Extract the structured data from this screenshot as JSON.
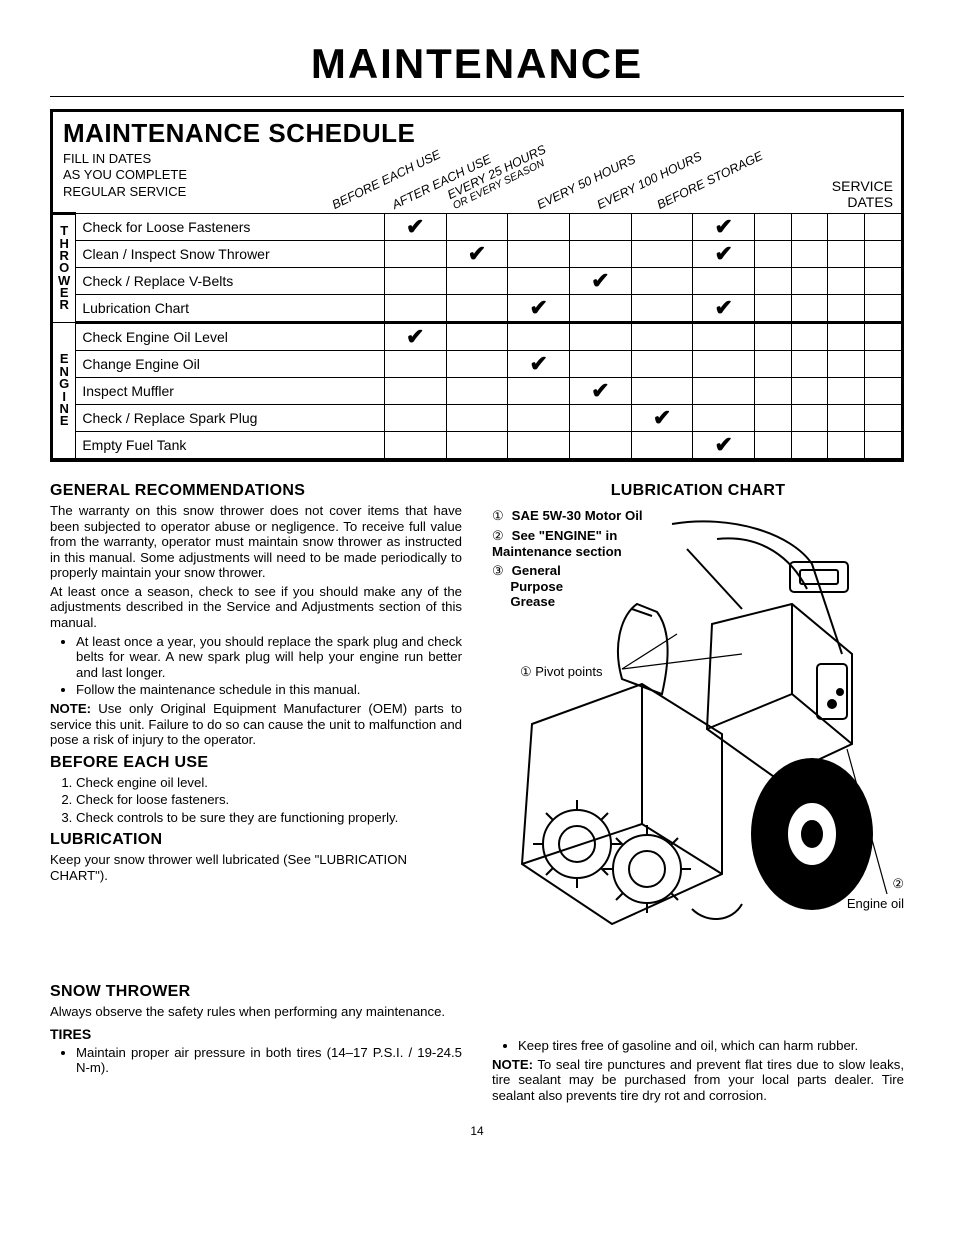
{
  "page_title": "MAINTENANCE",
  "page_number": "14",
  "schedule": {
    "title": "MAINTENANCE SCHEDULE",
    "subtitle_lines": [
      "FILL IN DATES",
      "AS YOU COMPLETE",
      "REGULAR SERVICE"
    ],
    "diag_cols": [
      "BEFORE EACH USE",
      "AFTER EACH USE",
      "EVERY 25 HOURS\nOR EVERY SEASON",
      "EVERY 50 HOURS",
      "EVERY 100 HOURS",
      "BEFORE STORAGE"
    ],
    "service_dates_label": "SERVICE\nDATES",
    "categories": [
      {
        "label": "THROWER",
        "rows": [
          {
            "task": "Check for Loose Fasteners",
            "marks": [
              true,
              false,
              false,
              false,
              false,
              true
            ]
          },
          {
            "task": "Clean / Inspect Snow Thrower",
            "marks": [
              false,
              true,
              false,
              false,
              false,
              true
            ]
          },
          {
            "task": "Check / Replace V-Belts",
            "marks": [
              false,
              false,
              false,
              true,
              false,
              false
            ]
          },
          {
            "task": "Lubrication Chart",
            "marks": [
              false,
              false,
              true,
              false,
              false,
              true
            ]
          }
        ]
      },
      {
        "label": "ENGINE",
        "rows": [
          {
            "task": "Check Engine Oil Level",
            "marks": [
              true,
              false,
              false,
              false,
              false,
              false
            ]
          },
          {
            "task": "Change Engine Oil",
            "marks": [
              false,
              false,
              true,
              false,
              false,
              false
            ]
          },
          {
            "task": "Inspect Muffler",
            "marks": [
              false,
              false,
              false,
              true,
              false,
              false
            ]
          },
          {
            "task": "Check / Replace Spark Plug",
            "marks": [
              false,
              false,
              false,
              false,
              true,
              false
            ]
          },
          {
            "task": "Empty Fuel Tank",
            "marks": [
              false,
              false,
              false,
              false,
              false,
              true
            ]
          }
        ]
      }
    ],
    "date_cols": 4
  },
  "general": {
    "heading": "GENERAL RECOMMENDATIONS",
    "p1": "The warranty on this snow thrower does not cover items that have been subjected to operator abuse or negligence. To receive full value from the warranty, operator must maintain snow thrower as instructed in this manual.  Some adjustments will need to be made periodically to properly maintain your snow thrower.",
    "p2": "At least once a season, check to see if you should make any of the adjustments described in the Service and Adjustments section of this manual.",
    "bullets": [
      "At least once a year, you should replace the spark plug and check belts for wear.  A new spark plug will help your engine run better and last longer.",
      "Follow the maintenance schedule in this manual."
    ],
    "note_label": "NOTE:",
    "note": "Use only Original Equipment Manufacturer (OEM) parts to service this unit.  Failure to do so can cause the unit to malfunction and pose a risk of injury to the operator."
  },
  "before": {
    "heading": "BEFORE EACH USE",
    "items": [
      "Check engine oil level.",
      "Check for loose fasteners.",
      "Check controls to be sure they are functioning properly."
    ]
  },
  "lube": {
    "heading": "LUBRICATION",
    "p": "Keep your snow thrower well lubricated (See \"LUBRICATION CHART\")."
  },
  "lubechart": {
    "heading": "LUBRICATION CHART",
    "items": [
      "SAE 5W-30 Motor Oil",
      "See \"ENGINE\" in Maintenance section",
      "General Purpose Grease"
    ],
    "pivot_label": "① Pivot points",
    "engine_oil_label": "Engine oil",
    "engine_oil_num": "②"
  },
  "snowthrower": {
    "heading": "SNOW THROWER",
    "p": "Always observe the safety rules when performing any maintenance.",
    "tires_heading": "TIRES",
    "tires_bullet": "Maintain proper air pressure in both tires (14–17 P.S.I. / 19-24.5 N-m).",
    "right_bullet": "Keep tires free of gasoline and oil, which can harm rubber.",
    "right_note_label": "NOTE:",
    "right_note": "To seal tire punctures and prevent flat tires due to slow leaks, tire sealant may be purchased from your local parts dealer. Tire sealant also prevents tire dry rot and corrosion."
  },
  "style": {
    "checkmark": "✔",
    "circled": [
      "①",
      "②",
      "③"
    ]
  }
}
